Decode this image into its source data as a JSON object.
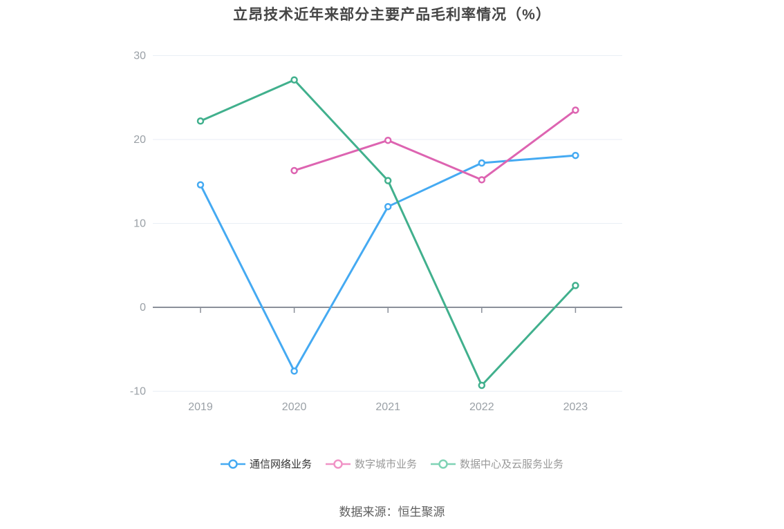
{
  "title": "立昂技术近年来部分主要产品毛利率情况（%）",
  "source": "数据来源：恒生聚源",
  "chart_data": {
    "type": "line",
    "title": "立昂技术近年来部分主要产品毛利率情况（%）",
    "categories": [
      "2019",
      "2020",
      "2021",
      "2022",
      "2023"
    ],
    "series": [
      {
        "name": "通信网络业务",
        "color": "#45aaf2",
        "legend_marker_color": "#45aaf2",
        "legend_label_color": "#333333",
        "values": [
          14.6,
          -7.6,
          12.0,
          17.2,
          18.1
        ]
      },
      {
        "name": "数字城市业务",
        "color": "#dd64b1",
        "legend_marker_color": "#f093c6",
        "legend_label_color": "#999999",
        "values": [
          null,
          16.3,
          19.9,
          15.2,
          23.5
        ]
      },
      {
        "name": "数据中心及云服务业务",
        "color": "#41b08d",
        "legend_marker_color": "#7fd3b5",
        "legend_label_color": "#999999",
        "values": [
          22.2,
          27.1,
          15.1,
          -9.3,
          2.6
        ]
      }
    ],
    "yticks": [
      30,
      20,
      10,
      0,
      -10
    ],
    "ylim": [
      -10,
      30
    ],
    "grid": true,
    "legend_position": "bottom",
    "colors": {
      "grid_line": "#e9eef4",
      "zero_axis": "#8a8f99",
      "axis_label": "#9aa0a6",
      "title_text": "#454545",
      "source_text": "#5f5f5f"
    }
  }
}
